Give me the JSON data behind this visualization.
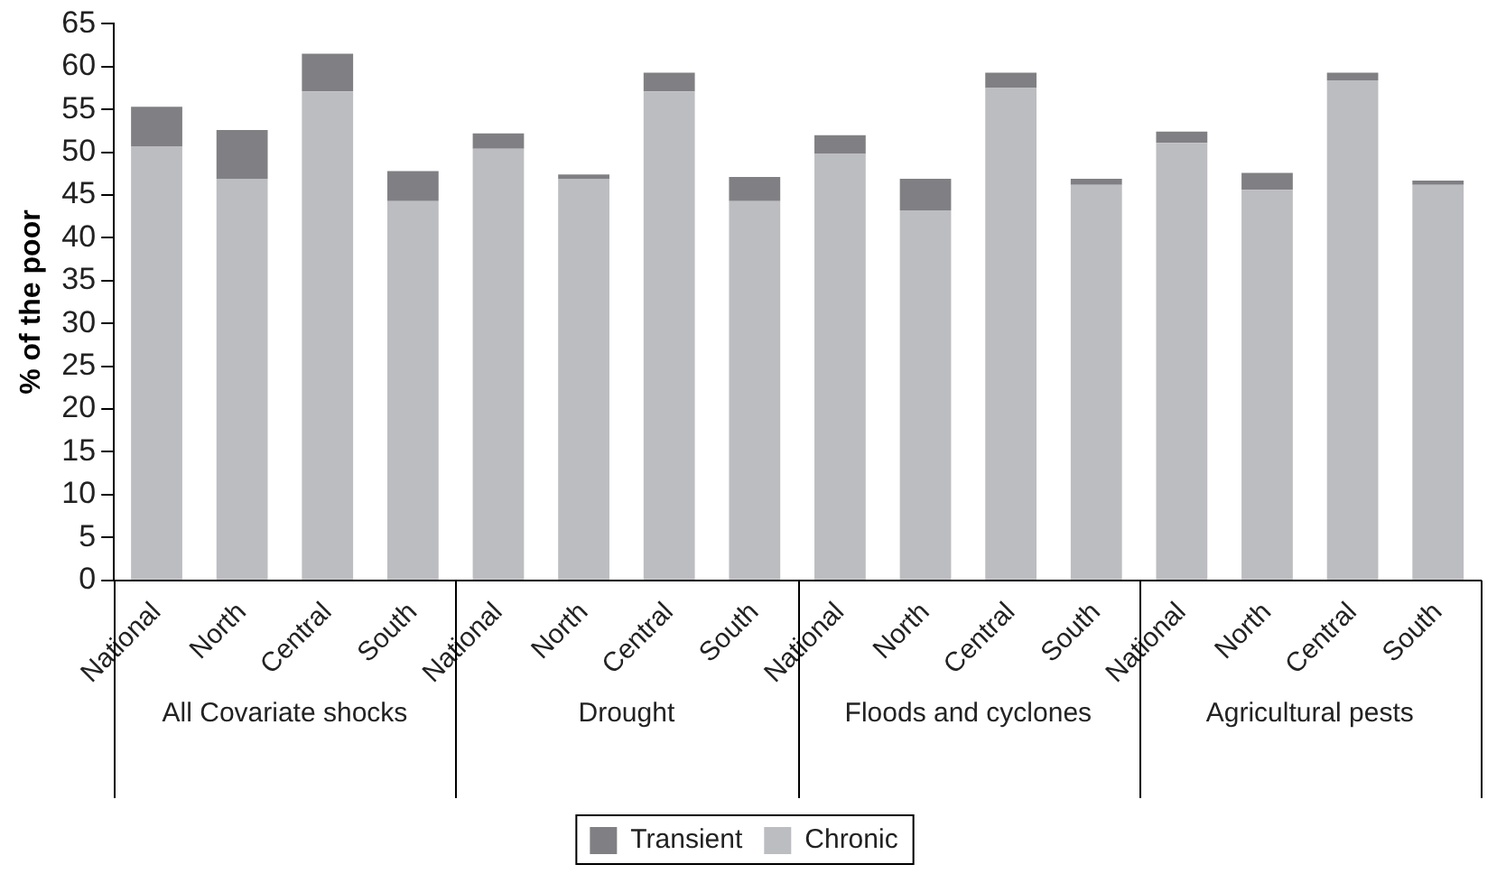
{
  "chart_data": {
    "type": "bar",
    "stacked": true,
    "ylabel": "% of the poor",
    "categories": [
      "National",
      "North",
      "Central",
      "South",
      "National",
      "North",
      "Central",
      "South",
      "National",
      "North",
      "Central",
      "South",
      "National",
      "North",
      "Central",
      "South"
    ],
    "series": [
      {
        "name": "Chronic",
        "color": "#bcbdc1",
        "values": [
          50.7,
          46.9,
          57.1,
          44.3,
          50.4,
          46.9,
          57.1,
          44.3,
          49.8,
          43.2,
          57.5,
          46.2,
          51.1,
          45.6,
          58.4,
          46.2
        ]
      },
      {
        "name": "Transient",
        "color": "#808084",
        "values": [
          4.6,
          5.7,
          4.4,
          3.5,
          1.8,
          0.5,
          2.2,
          2.8,
          2.2,
          3.7,
          1.8,
          0.7,
          1.3,
          2.0,
          0.9,
          0.5
        ]
      }
    ],
    "annotations": [
      "All Covariate shocks",
      "Drought",
      "Floods and cyclones",
      "Agricultural pests"
    ],
    "ylim": [
      0,
      65
    ],
    "yticks": [
      0,
      5,
      10,
      15,
      20,
      25,
      30,
      35,
      40,
      45,
      50,
      55,
      60,
      65
    ],
    "grid": false,
    "legend": "bottom"
  }
}
